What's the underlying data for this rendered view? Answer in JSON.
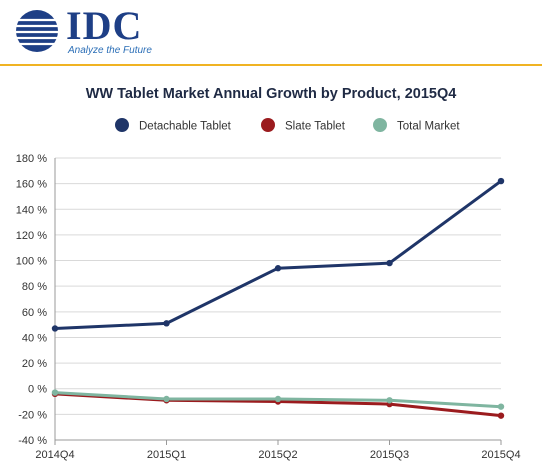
{
  "brand": {
    "logo_text": "IDC",
    "tagline": "Analyze the Future",
    "logo_color": "#1e3f86",
    "rule_color": "#f0b323"
  },
  "chart_data": {
    "type": "line",
    "title": "WW Tablet Market Annual Growth by Product, 2015Q4",
    "x": [
      "2014Q4",
      "2015Q1",
      "2015Q2",
      "2015Q3",
      "2015Q4"
    ],
    "series": [
      {
        "name": "Detachable Tablet",
        "color": "#1f3568",
        "values": [
          47,
          51,
          94,
          98,
          162
        ]
      },
      {
        "name": "Slate Tablet",
        "color": "#9b1b1e",
        "values": [
          -4,
          -9,
          -10,
          -12,
          -21
        ]
      },
      {
        "name": "Total Market",
        "color": "#7fb5a0",
        "values": [
          -3,
          -8,
          -8,
          -9,
          -14
        ]
      }
    ],
    "ylim": [
      -40,
      180
    ],
    "yticks": [
      -40,
      -20,
      0,
      20,
      40,
      60,
      80,
      100,
      120,
      140,
      160,
      180
    ],
    "ytick_labels": [
      "-40 %",
      "-20 %",
      "0 %",
      "20 %",
      "40 %",
      "60 %",
      "80 %",
      "100 %",
      "120 %",
      "140 %",
      "160 %",
      "180 %"
    ],
    "xlabel": "",
    "ylabel": "",
    "grid": true,
    "legend_position": "top"
  }
}
